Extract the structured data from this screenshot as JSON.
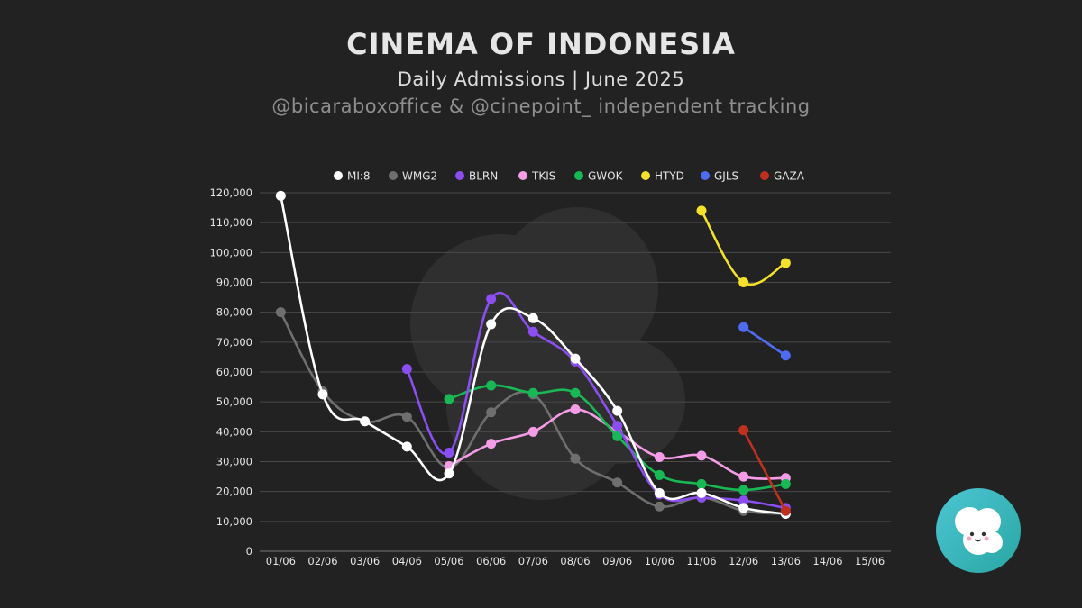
{
  "header": {
    "title": "CINEMA OF INDONESIA",
    "subtitle": "Daily Admissions | June 2025",
    "credit": "@bicaraboxoffice & @cinepoint_ independent tracking"
  },
  "chart_data": {
    "type": "line",
    "categories": [
      "01/06",
      "02/06",
      "03/06",
      "04/06",
      "05/06",
      "06/06",
      "07/06",
      "08/06",
      "09/06",
      "10/06",
      "11/06",
      "12/06",
      "13/06",
      "14/06",
      "15/06"
    ],
    "ylim": [
      0,
      120000
    ],
    "yticks": [
      0,
      10000,
      20000,
      30000,
      40000,
      50000,
      60000,
      70000,
      80000,
      90000,
      100000,
      110000,
      120000
    ],
    "ytick_labels": [
      "0",
      "10,000",
      "20,000",
      "30,000",
      "40,000",
      "50,000",
      "60,000",
      "70,000",
      "80,000",
      "90,000",
      "100,000",
      "110,000",
      "120,000"
    ],
    "grid": true,
    "legend_position": "top",
    "series": [
      {
        "name": "MI:8",
        "color": "#ffffff",
        "values": [
          119000,
          52500,
          43500,
          35000,
          26000,
          76000,
          78000,
          64500,
          47000,
          19500,
          19500,
          14500,
          12500,
          null,
          null
        ]
      },
      {
        "name": "WMG2",
        "color": "#6f6f6f",
        "values": [
          80000,
          53500,
          43500,
          45000,
          28000,
          46500,
          52500,
          31000,
          23000,
          15000,
          18000,
          13500,
          12500,
          null,
          null
        ]
      },
      {
        "name": "BLRN",
        "color": "#8b4ef0",
        "values": [
          null,
          null,
          null,
          61000,
          33000,
          84500,
          73500,
          63500,
          42000,
          19000,
          18000,
          17000,
          14500,
          null,
          null
        ]
      },
      {
        "name": "TKIS",
        "color": "#f59ce6",
        "values": [
          null,
          null,
          null,
          null,
          28500,
          36000,
          40000,
          47500,
          40000,
          31500,
          32000,
          25000,
          24500,
          null,
          null
        ]
      },
      {
        "name": "GWOK",
        "color": "#18b854",
        "values": [
          null,
          null,
          null,
          null,
          51000,
          55500,
          53000,
          53000,
          38500,
          25500,
          22500,
          20500,
          22500,
          null,
          null
        ]
      },
      {
        "name": "HTYD",
        "color": "#f5e02c",
        "values": [
          null,
          null,
          null,
          null,
          null,
          null,
          null,
          null,
          null,
          null,
          114000,
          90000,
          96500,
          null,
          null
        ]
      },
      {
        "name": "GJLS",
        "color": "#4f6cf0",
        "values": [
          null,
          null,
          null,
          null,
          null,
          null,
          null,
          null,
          null,
          null,
          null,
          75000,
          65500,
          null,
          null
        ]
      },
      {
        "name": "GAZA",
        "color": "#c0301e",
        "values": [
          null,
          null,
          null,
          null,
          null,
          null,
          null,
          null,
          null,
          null,
          null,
          40500,
          13500,
          null,
          null
        ]
      }
    ]
  }
}
